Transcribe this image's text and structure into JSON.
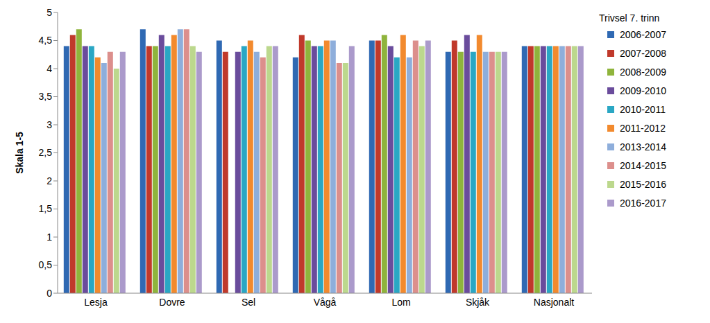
{
  "chart_data": {
    "type": "bar",
    "y_label": "Skala 1-5",
    "legend_title": "Trivsel 7. trinn",
    "categories": [
      "Lesja",
      "Dovre",
      "Sel",
      "Vågå",
      "Lom",
      "Skjåk",
      "Nasjonalt"
    ],
    "series": [
      {
        "name": "2006-2007",
        "color": "#2f69b3",
        "values": [
          4.4,
          4.7,
          4.5,
          4.2,
          4.5,
          4.3,
          4.4
        ]
      },
      {
        "name": "2007-2008",
        "color": "#c0392b",
        "values": [
          4.6,
          4.4,
          4.3,
          4.6,
          4.5,
          4.5,
          4.4
        ]
      },
      {
        "name": "2008-2009",
        "color": "#8fb43c",
        "values": [
          4.7,
          4.4,
          null,
          4.5,
          4.6,
          4.3,
          4.4
        ]
      },
      {
        "name": "2009-2010",
        "color": "#6a4c9c",
        "values": [
          4.4,
          4.6,
          4.3,
          4.4,
          4.4,
          4.6,
          4.4
        ]
      },
      {
        "name": "2010-2011",
        "color": "#2aa7c4",
        "values": [
          4.4,
          4.4,
          4.4,
          4.4,
          4.2,
          4.3,
          4.4
        ]
      },
      {
        "name": "2011-2012",
        "color": "#f28a2e",
        "values": [
          4.2,
          4.6,
          4.5,
          4.5,
          4.6,
          4.6,
          4.4
        ]
      },
      {
        "name": "2013-2014",
        "color": "#8eaedb",
        "values": [
          4.1,
          4.7,
          4.3,
          4.5,
          4.2,
          4.3,
          4.4
        ]
      },
      {
        "name": "2014-2015",
        "color": "#dc8f8c",
        "values": [
          4.3,
          4.7,
          4.2,
          4.1,
          4.5,
          4.3,
          4.4
        ]
      },
      {
        "name": "2015-2016",
        "color": "#bcd88d",
        "values": [
          4.0,
          4.4,
          4.4,
          4.1,
          4.4,
          4.3,
          4.4
        ]
      },
      {
        "name": "2016-2017",
        "color": "#ab9acb",
        "values": [
          4.3,
          4.3,
          4.4,
          4.4,
          4.5,
          4.3,
          4.4
        ]
      }
    ],
    "ylim": [
      0,
      5
    ],
    "yticks": [
      0,
      {
        "value": 0.5,
        "label": "0,5"
      },
      1,
      {
        "value": 1.5,
        "label": "1,5"
      },
      2,
      {
        "value": 2.5,
        "label": "2,5"
      },
      3,
      {
        "value": 3.5,
        "label": "3,5"
      },
      4,
      {
        "value": 4.5,
        "label": "4,5"
      },
      5
    ],
    "grid": false,
    "legend": "right"
  }
}
